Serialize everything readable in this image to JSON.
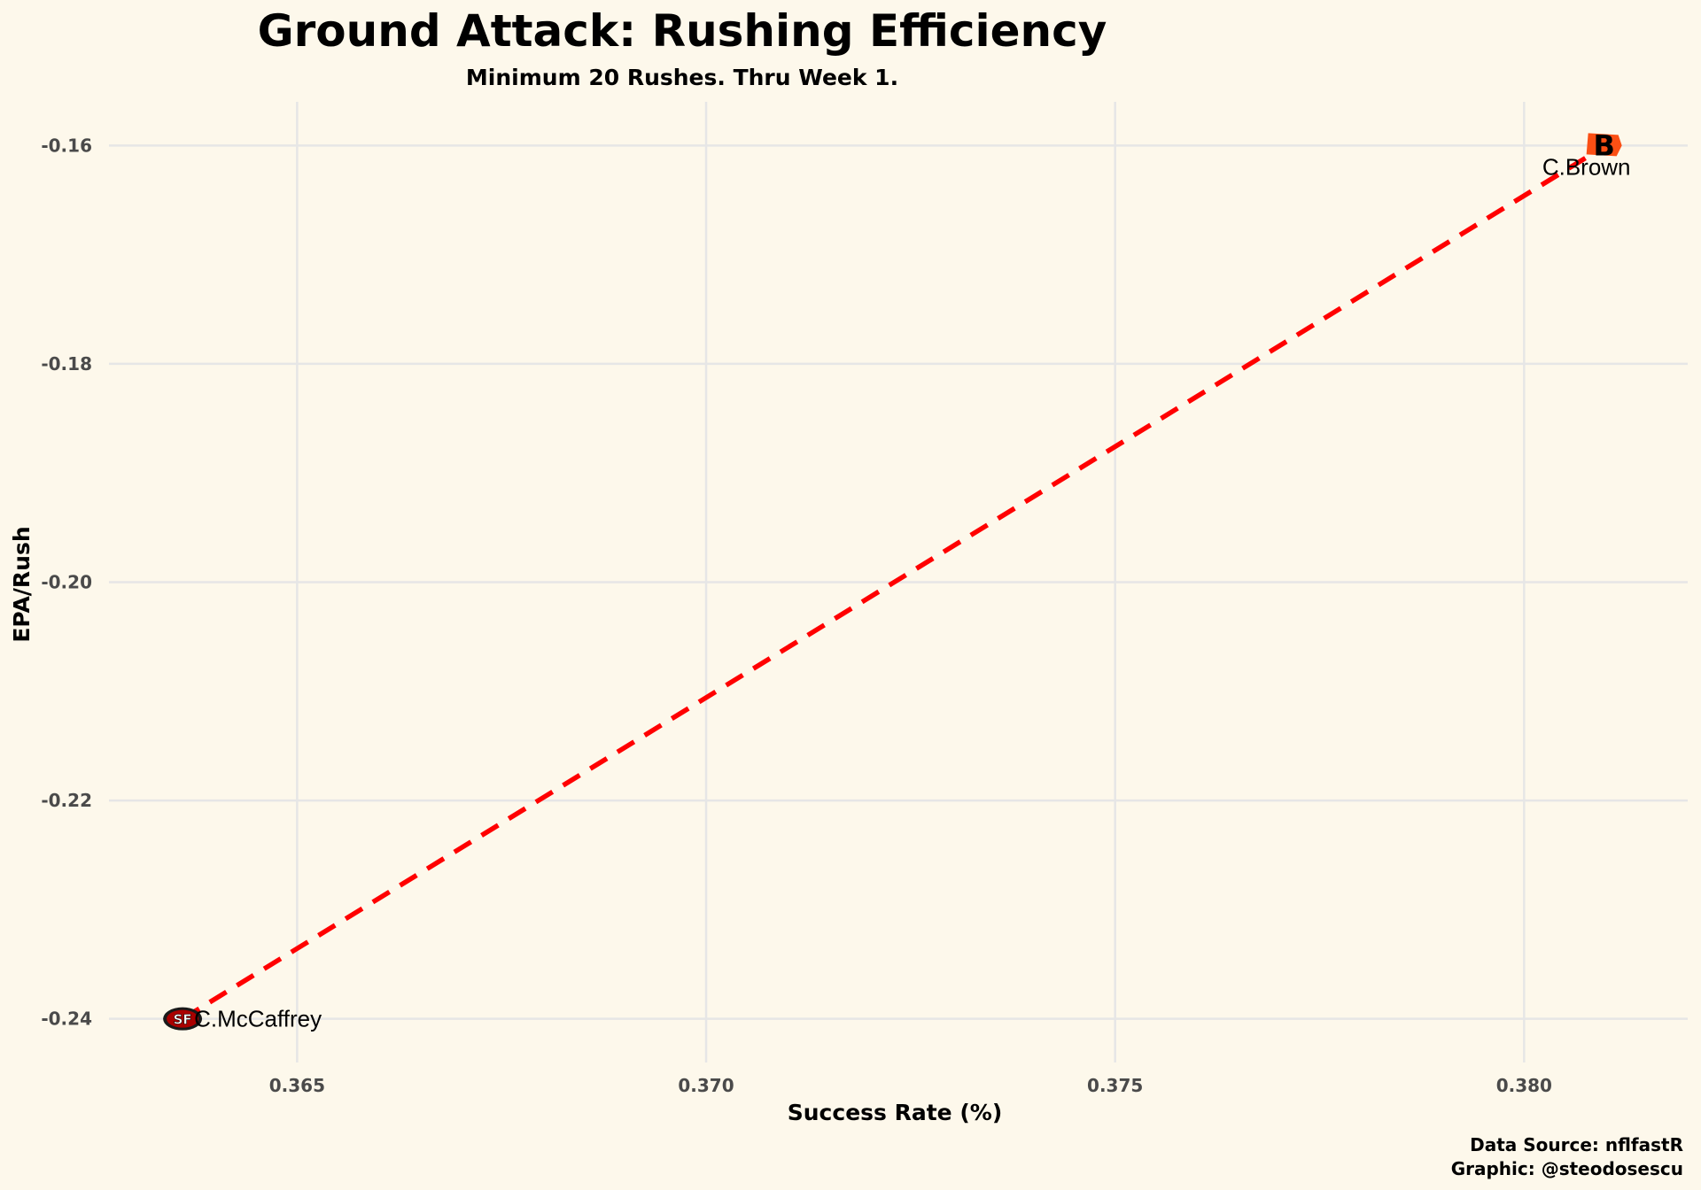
{
  "chart_data": {
    "type": "scatter",
    "title": "Ground Attack: Rushing Efficiency",
    "subtitle": "Minimum 20 Rushes. Thru Week 1.",
    "xlabel": "Success Rate (%)",
    "ylabel": "EPA/Rush",
    "xlim": [
      0.3627,
      0.382
    ],
    "ylim": [
      -0.244,
      -0.156
    ],
    "x_ticks": [
      0.365,
      0.37,
      0.375,
      0.38
    ],
    "x_tick_labels": [
      "0.365",
      "0.370",
      "0.375",
      "0.380"
    ],
    "y_ticks": [
      -0.16,
      -0.18,
      -0.2,
      -0.22,
      -0.24
    ],
    "y_tick_labels": [
      "-0.16",
      "-0.18",
      "-0.20",
      "-0.22",
      "-0.24"
    ],
    "grid": true,
    "points": [
      {
        "label": "C.McCaffrey",
        "team": "SF",
        "logo_text": "SF",
        "x": 0.3636,
        "y": -0.24,
        "logo_primary": "#aa0000",
        "logo_secondary": "#ffffff"
      },
      {
        "label": "C.Brown",
        "team": "CIN",
        "logo_text": "B",
        "x": 0.381,
        "y": -0.16,
        "logo_primary": "#fb4f14",
        "logo_secondary": "#000000"
      }
    ],
    "trend_line": {
      "style": "dashed",
      "color": "#ff0000",
      "from": [
        0.3636,
        -0.24
      ],
      "to": [
        0.381,
        -0.16
      ]
    }
  },
  "caption": {
    "line1": "Data Source: nflfastR",
    "line2": "Graphic: @steodosescu"
  },
  "colors": {
    "background": "#fdf8eb",
    "grid": "#e6e6e6",
    "trend": "#ff0000"
  }
}
